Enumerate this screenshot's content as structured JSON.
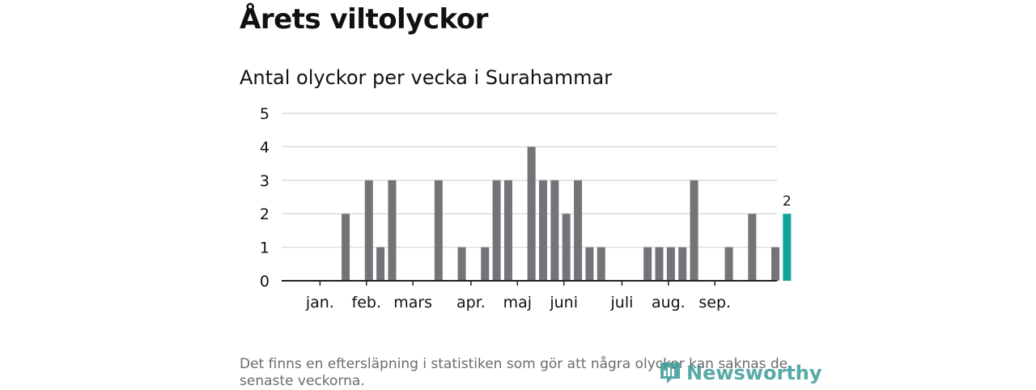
{
  "header": {
    "title": "Årets viltolyckor",
    "subtitle": "Antal olyckor per vecka i Surahammar"
  },
  "footnote": "Det finns en eftersläpning i statistiken som gör att några olyckor kan saknas de senaste veckorna.",
  "logo": {
    "text": "Newsworthy",
    "icon": "newsworthy-logo-icon"
  },
  "colors": {
    "bar": "#747378",
    "highlight": "#12a39a",
    "grid": "#dddddd",
    "axis": "#222222"
  },
  "chart_data": {
    "type": "bar",
    "title": "Antal olyckor per vecka i Surahammar",
    "xlabel": "",
    "ylabel": "",
    "ylim": [
      0,
      5
    ],
    "yticks": [
      0,
      1,
      2,
      3,
      4,
      5
    ],
    "grid": true,
    "month_labels": [
      {
        "label": "jan.",
        "week": 2
      },
      {
        "label": "feb.",
        "week": 6
      },
      {
        "label": "mars",
        "week": 10
      },
      {
        "label": "apr.",
        "week": 15
      },
      {
        "label": "maj",
        "week": 19
      },
      {
        "label": "juni",
        "week": 23
      },
      {
        "label": "juli",
        "week": 28
      },
      {
        "label": "aug.",
        "week": 32
      },
      {
        "label": "sep.",
        "week": 36
      }
    ],
    "weeks": [
      1,
      2,
      3,
      4,
      5,
      6,
      7,
      8,
      9,
      10,
      11,
      12,
      13,
      14,
      15,
      16,
      17,
      18,
      19,
      20,
      21,
      22,
      23,
      24,
      25,
      26,
      27,
      28,
      29,
      30,
      31,
      32,
      33,
      34,
      35,
      36,
      37,
      38,
      39,
      40,
      41,
      42
    ],
    "values": [
      0,
      0,
      0,
      2,
      0,
      3,
      1,
      3,
      0,
      0,
      0,
      3,
      0,
      1,
      0,
      1,
      3,
      3,
      0,
      4,
      3,
      3,
      2,
      3,
      1,
      1,
      0,
      0,
      0,
      1,
      1,
      1,
      1,
      3,
      0,
      0,
      1,
      0,
      2,
      0,
      1,
      2
    ],
    "highlight_index": 41,
    "highlight_label": "2"
  }
}
